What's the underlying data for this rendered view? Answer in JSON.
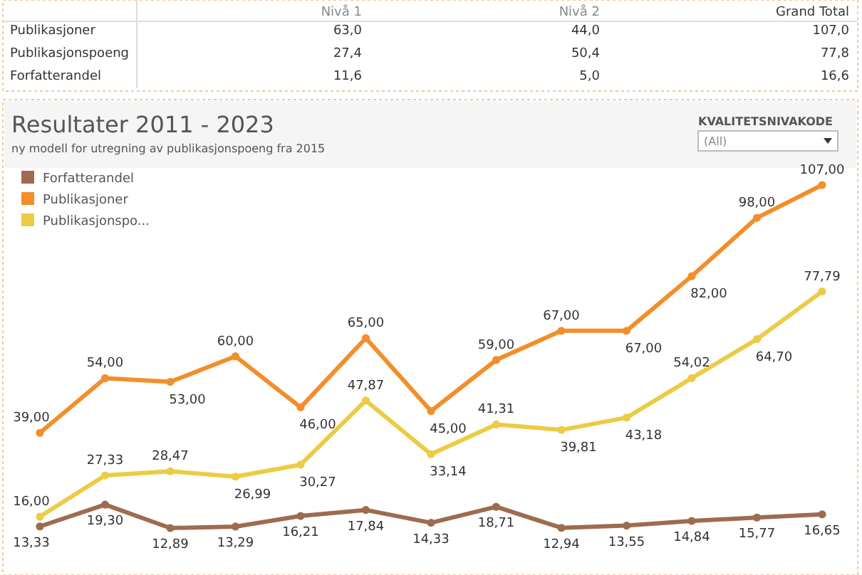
{
  "chart_data": [
    {
      "type": "heatmap",
      "categories": [
        "Nivå 1",
        "Nivå 2",
        "Grand Total"
      ],
      "y_categories": [
        "Publikasjoner",
        "Publikasjonspoeng",
        "Forfatterandel"
      ],
      "cells": [
        [
          63.0,
          44.0,
          107.0
        ],
        [
          27.4,
          50.4,
          77.8
        ],
        [
          11.6,
          5.0,
          16.6
        ]
      ],
      "cell_labels": [
        [
          "63,0",
          "44,0",
          "107,0"
        ],
        [
          "27,4",
          "50,4",
          "77,8"
        ],
        [
          "11,6",
          "5,0",
          "16,6"
        ]
      ]
    },
    {
      "type": "line",
      "title": "Resultater 2011 - 2023",
      "subtitle": "ny modell for utregning av publikasjonspoeng fra 2015",
      "annotations": [
        "KVALITETSNIVAKODE",
        "(All)"
      ],
      "categories": [
        null,
        null,
        null,
        null,
        null,
        null,
        null,
        null,
        null,
        null,
        null,
        null,
        null
      ],
      "tick_labels": false,
      "grid": false,
      "legend": "top left",
      "marker": "circle",
      "line_style": "solid",
      "series": [
        {
          "name": "Forfatterandel",
          "color": "#9e6b4f",
          "values": [
            13.33,
            19.3,
            12.89,
            13.29,
            16.21,
            17.84,
            14.33,
            18.71,
            12.94,
            13.55,
            14.84,
            15.77,
            16.65
          ],
          "value_labels": [
            "13,33",
            "19,30",
            "12,89",
            "13,29",
            "16,21",
            "17,84",
            "14,33",
            "18,71",
            "12,94",
            "13,55",
            "14,84",
            "15,77",
            "16,65"
          ]
        },
        {
          "name": "Publikasjoner",
          "color": "#f28e2b",
          "values": [
            39,
            54,
            53,
            60,
            46,
            65,
            45,
            59,
            67,
            67,
            82,
            98,
            107
          ],
          "value_labels": [
            "39,00",
            "54,00",
            "53,00",
            "60,00",
            "46,00",
            "65,00",
            "45,00",
            "59,00",
            "67,00",
            "67,00",
            "82,00",
            "98,00",
            "107,00"
          ]
        },
        {
          "name": "Publikasjonspo...",
          "color": "#eccb45",
          "values": [
            16.0,
            27.33,
            28.47,
            26.99,
            30.27,
            47.87,
            33.14,
            41.31,
            39.81,
            43.18,
            54.02,
            64.7,
            77.79
          ],
          "value_labels": [
            "16,00",
            "27,33",
            "28,47",
            "26,99",
            "30,27",
            "47,87",
            "33,14",
            "41,31",
            "39,81",
            "43,18",
            "54,02",
            "64,70",
            "77,79"
          ]
        }
      ]
    }
  ]
}
